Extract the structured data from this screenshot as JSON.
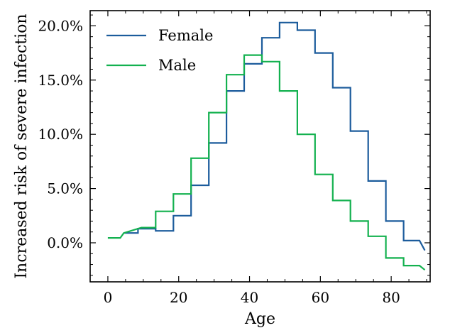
{
  "chart_data": {
    "type": "line",
    "step": true,
    "xlabel": "Age",
    "ylabel": "Increased risk of severe infection",
    "xlim": [
      -5,
      91
    ],
    "ylim": [
      -3.6,
      21.4
    ],
    "x_ticks": [
      0,
      20,
      40,
      60,
      80
    ],
    "x_tick_labels": [
      "0",
      "20",
      "40",
      "60",
      "80"
    ],
    "y_ticks": [
      0,
      5,
      10,
      15,
      20
    ],
    "y_tick_labels": [
      "0.0%",
      "5.0%",
      "10.0%",
      "15.0%",
      "20.0%"
    ],
    "legend_position": "top-left",
    "grid": false,
    "series": [
      {
        "name": "Female",
        "color": "#1c5c9c",
        "points": [
          [
            4.5,
            0.9
          ],
          [
            8.5,
            0.9
          ],
          [
            8.5,
            1.3
          ],
          [
            13.5,
            1.3
          ],
          [
            13.5,
            1.1
          ],
          [
            18.5,
            1.1
          ],
          [
            18.5,
            2.5
          ],
          [
            23.5,
            2.5
          ],
          [
            23.5,
            5.3
          ],
          [
            28.5,
            5.3
          ],
          [
            28.5,
            9.2
          ],
          [
            33.5,
            9.2
          ],
          [
            33.5,
            14.0
          ],
          [
            38.5,
            14.0
          ],
          [
            38.5,
            16.5
          ],
          [
            43.5,
            16.5
          ],
          [
            43.5,
            18.9
          ],
          [
            48.5,
            18.9
          ],
          [
            48.5,
            20.3
          ],
          [
            53.5,
            20.3
          ],
          [
            53.5,
            19.6
          ],
          [
            58.5,
            19.6
          ],
          [
            58.5,
            17.5
          ],
          [
            63.5,
            17.5
          ],
          [
            63.5,
            14.3
          ],
          [
            68.5,
            14.3
          ],
          [
            68.5,
            10.3
          ],
          [
            73.5,
            10.3
          ],
          [
            73.5,
            5.7
          ],
          [
            78.5,
            5.7
          ],
          [
            78.5,
            2.0
          ],
          [
            83.5,
            2.0
          ],
          [
            83.5,
            0.2
          ],
          [
            88,
            0.2
          ],
          [
            89.5,
            -0.7
          ]
        ]
      },
      {
        "name": "Male",
        "color": "#13b14f",
        "points": [
          [
            0,
            0.45
          ],
          [
            3.5,
            0.45
          ],
          [
            4.5,
            0.9
          ],
          [
            9.5,
            1.4
          ],
          [
            13.5,
            1.4
          ],
          [
            13.5,
            2.9
          ],
          [
            18.5,
            2.9
          ],
          [
            18.5,
            4.5
          ],
          [
            23.5,
            4.5
          ],
          [
            23.5,
            7.8
          ],
          [
            28.5,
            7.8
          ],
          [
            28.5,
            12.0
          ],
          [
            33.5,
            12.0
          ],
          [
            33.5,
            15.5
          ],
          [
            38.5,
            15.5
          ],
          [
            38.5,
            17.3
          ],
          [
            43.5,
            17.3
          ],
          [
            43.5,
            16.7
          ],
          [
            48.5,
            16.7
          ],
          [
            48.5,
            14.0
          ],
          [
            53.5,
            14.0
          ],
          [
            53.5,
            10.0
          ],
          [
            58.5,
            10.0
          ],
          [
            58.5,
            6.3
          ],
          [
            63.5,
            6.3
          ],
          [
            63.5,
            3.9
          ],
          [
            68.5,
            3.9
          ],
          [
            68.5,
            2.0
          ],
          [
            73.5,
            2.0
          ],
          [
            73.5,
            0.6
          ],
          [
            78.5,
            0.6
          ],
          [
            78.5,
            -1.4
          ],
          [
            83.5,
            -1.4
          ],
          [
            83.5,
            -2.1
          ],
          [
            88,
            -2.1
          ],
          [
            89.5,
            -2.5
          ]
        ]
      }
    ]
  }
}
